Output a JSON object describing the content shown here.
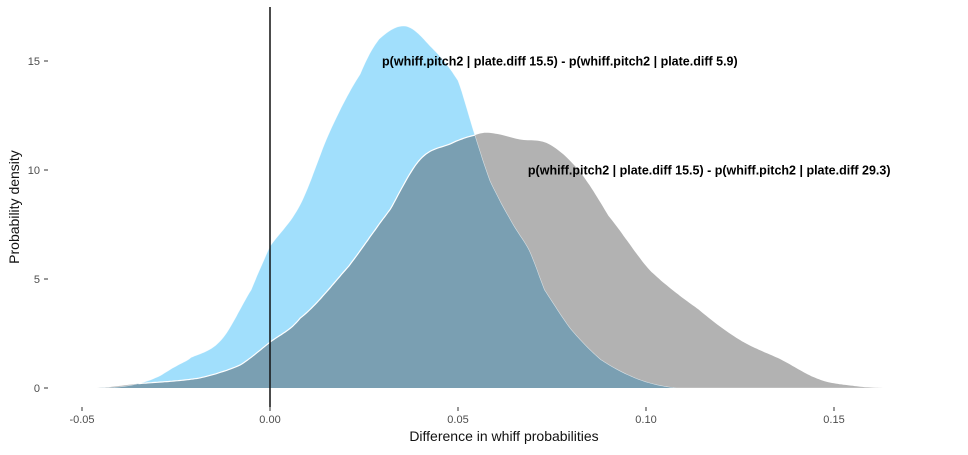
{
  "chart_data": {
    "type": "area",
    "xlabel": "Difference in whiff probabilities",
    "ylabel": "Probability density",
    "xlim": [
      -0.05,
      0.165
    ],
    "ylim": [
      0,
      17.5
    ],
    "x_ticks": [
      -0.05,
      0.0,
      0.05,
      0.1,
      0.15
    ],
    "x_tick_labels": [
      "-0.05",
      "0.00",
      "0.05",
      "0.10",
      "0.15"
    ],
    "y_ticks": [
      0,
      5,
      10,
      15
    ],
    "y_tick_labels": [
      "0",
      "5",
      "10",
      "15"
    ],
    "grid": false,
    "vline_x": 0,
    "colors": {
      "series_a": "#a1dffc",
      "series_b": "#b2b2b2",
      "overlap": "#7a9fb2",
      "vline": "#111111"
    },
    "series": [
      {
        "x": [
          -0.046,
          -0.04,
          -0.035,
          -0.03,
          -0.025,
          -0.021,
          -0.013,
          -0.005,
          0.0,
          0.008,
          0.016,
          0.024,
          0.029,
          0.036,
          0.0425,
          0.05,
          0.0545,
          0.0585,
          0.064,
          0.069,
          0.073,
          0.08,
          0.088,
          0.098,
          0.108
        ],
        "y": [
          0,
          0.05,
          0.2,
          0.5,
          1.0,
          1.4,
          2.2,
          4.5,
          6.5,
          8.4,
          11.8,
          14.4,
          16.0,
          16.6,
          15.7,
          14.1,
          11.6,
          9.5,
          7.7,
          6.3,
          4.5,
          2.7,
          1.3,
          0.4,
          0
        ]
      },
      {
        "x": [
          -0.046,
          -0.035,
          -0.019,
          -0.008,
          0.0,
          0.008,
          0.021,
          0.032,
          0.04,
          0.048,
          0.0545,
          0.0585,
          0.0665,
          0.074,
          0.082,
          0.09,
          0.101,
          0.114,
          0.125,
          0.136,
          0.146,
          0.155,
          0.163
        ],
        "y": [
          0,
          0.2,
          0.45,
          1.05,
          2.1,
          3.2,
          5.6,
          8.2,
          10.5,
          11.2,
          11.6,
          11.7,
          11.4,
          11.2,
          10.0,
          7.9,
          5.4,
          3.6,
          2.2,
          1.3,
          0.4,
          0.1,
          0
        ]
      }
    ],
    "annotations": [
      {
        "text": "p(whiff.pitch2 | plate.diff 15.5) - p(whiff.pitch2 | plate.diff 5.9)",
        "x": 0.0298,
        "y": 15
      },
      {
        "text": "p(whiff.pitch2 | plate.diff 15.5) - p(whiff.pitch2 | plate.diff 29.3)",
        "x": 0.0686,
        "y": 10
      }
    ]
  }
}
